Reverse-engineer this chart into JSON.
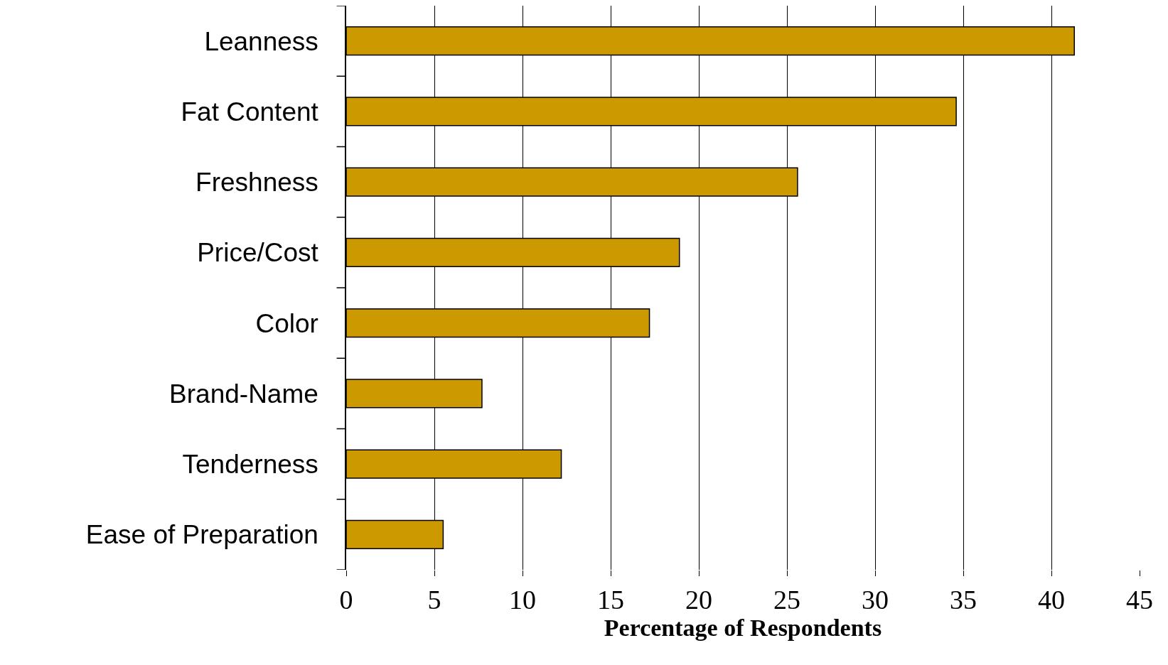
{
  "chart_data": {
    "type": "bar",
    "orientation": "horizontal",
    "xlabel": "Percentage of Respondents",
    "categories": [
      "Leanness",
      "Fat Content",
      "Freshness",
      "Price/Cost",
      "Color",
      "Brand-Name",
      "Tenderness",
      "Ease of Preparation"
    ],
    "values": [
      41.3,
      34.6,
      25.6,
      18.9,
      17.2,
      7.7,
      12.2,
      5.5
    ],
    "color": "#cc9900",
    "xlim": [
      0,
      45
    ],
    "xticks": [
      0,
      5,
      10,
      15,
      20,
      25,
      30,
      35,
      40,
      45
    ],
    "grid": "x"
  }
}
